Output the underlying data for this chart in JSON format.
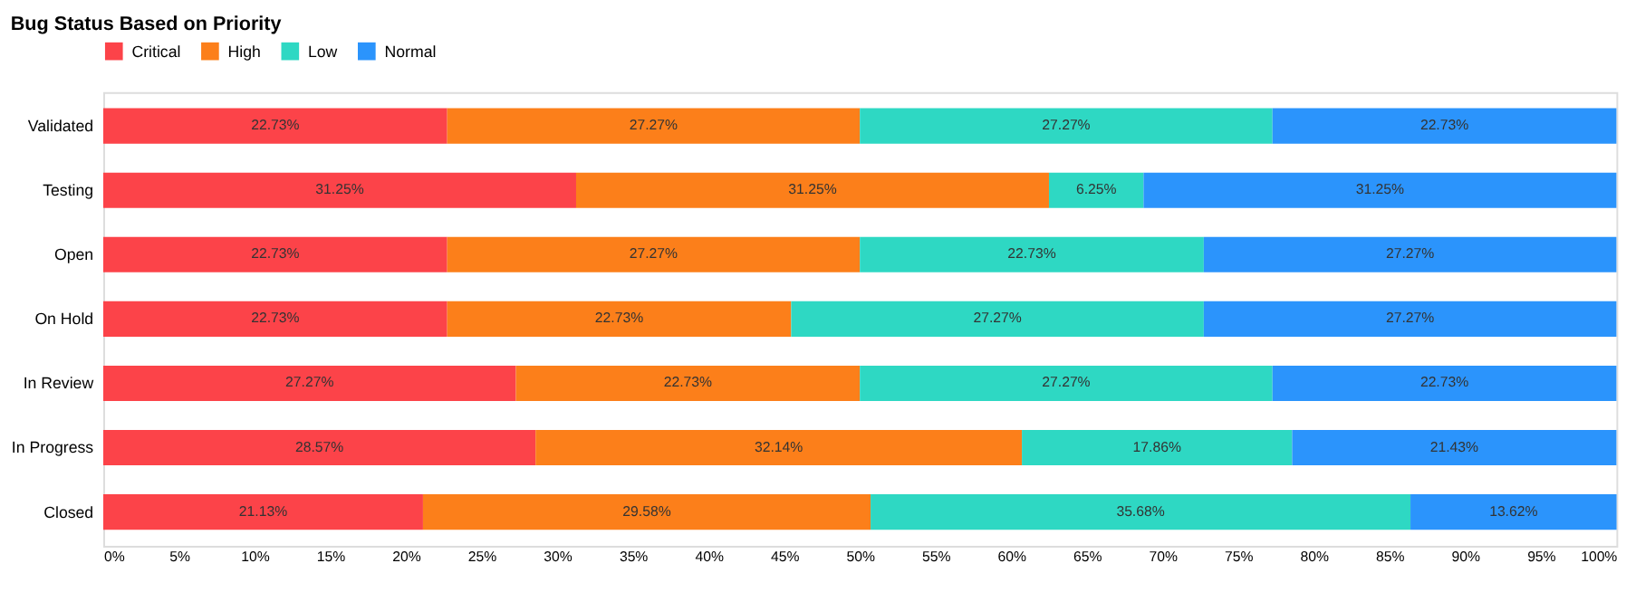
{
  "chart_data": {
    "type": "bar",
    "title": "Bug Status Based on Priority",
    "orientation": "horizontal",
    "stacked": true,
    "categories": [
      "Validated",
      "Testing",
      "Open",
      "On Hold",
      "In Review",
      "In Progress",
      "Closed"
    ],
    "series": [
      {
        "name": "Critical",
        "color": "#fc4349",
        "values": [
          22.73,
          31.25,
          22.73,
          22.73,
          27.27,
          28.57,
          21.13
        ],
        "value_labels": [
          "22.73%",
          "31.25%",
          "22.73%",
          "22.73%",
          "27.27%",
          "28.57%",
          "21.13%"
        ]
      },
      {
        "name": "High",
        "color": "#fc7f1a",
        "values": [
          27.27,
          31.25,
          27.27,
          22.73,
          22.73,
          32.14,
          29.58
        ],
        "value_labels": [
          "27.27%",
          "31.25%",
          "27.27%",
          "22.73%",
          "22.73%",
          "32.14%",
          "29.58%"
        ]
      },
      {
        "name": "Low",
        "color": "#2ed8c3",
        "values": [
          27.27,
          6.25,
          22.73,
          27.27,
          27.27,
          17.86,
          35.68
        ],
        "value_labels": [
          "27.27%",
          "6.25%",
          "22.73%",
          "27.27%",
          "27.27%",
          "17.86%",
          "35.68%"
        ]
      },
      {
        "name": "Normal",
        "color": "#2b94fc",
        "values": [
          22.73,
          31.25,
          27.27,
          27.27,
          22.73,
          21.43,
          13.62
        ],
        "value_labels": [
          "22.73%",
          "31.25%",
          "27.27%",
          "27.27%",
          "22.73%",
          "21.43%",
          "13.62%"
        ]
      }
    ],
    "xlim": [
      0,
      100
    ],
    "xticks": [
      {
        "value": 0,
        "label": "0%"
      },
      {
        "value": 5,
        "label": "5%"
      },
      {
        "value": 10,
        "label": "10%"
      },
      {
        "value": 15,
        "label": "15%"
      },
      {
        "value": 20,
        "label": "20%"
      },
      {
        "value": 25,
        "label": "25%"
      },
      {
        "value": 30,
        "label": "30%"
      },
      {
        "value": 35,
        "label": "35%"
      },
      {
        "value": 40,
        "label": "40%"
      },
      {
        "value": 45,
        "label": "45%"
      },
      {
        "value": 50,
        "label": "50%"
      },
      {
        "value": 55,
        "label": "55%"
      },
      {
        "value": 60,
        "label": "60%"
      },
      {
        "value": 65,
        "label": "65%"
      },
      {
        "value": 70,
        "label": "70%"
      },
      {
        "value": 75,
        "label": "75%"
      },
      {
        "value": 80,
        "label": "80%"
      },
      {
        "value": 85,
        "label": "85%"
      },
      {
        "value": 90,
        "label": "90%"
      },
      {
        "value": 95,
        "label": "95%"
      },
      {
        "value": 100,
        "label": "100%"
      }
    ],
    "grid": false,
    "legend": "top"
  }
}
